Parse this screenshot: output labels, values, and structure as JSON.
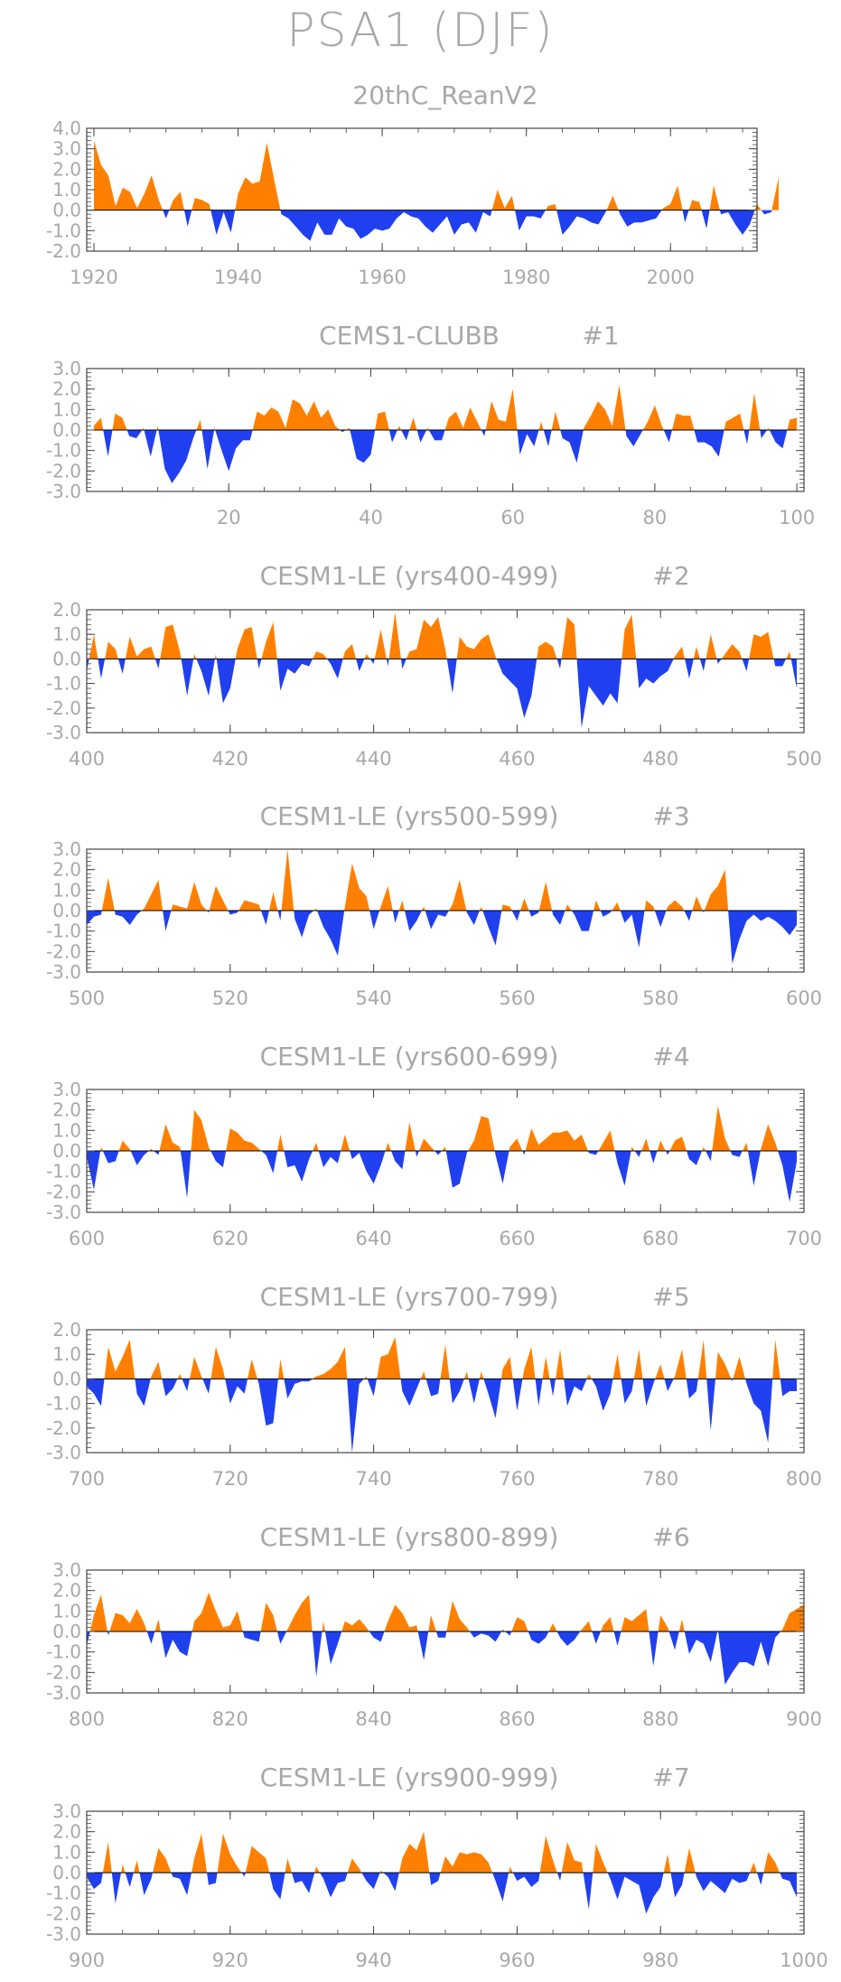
{
  "title": "PSA1 (DJF)",
  "colors": {
    "positive": "#ff8000",
    "negative": "#2040f0",
    "frame": "#444444",
    "text": "#a8a8a8"
  },
  "chart_data": [
    {
      "type": "area",
      "title": "20thC_ReanV2",
      "ylim": [
        -2,
        4
      ],
      "yticks": [
        "4.0",
        "3.0",
        "2.0",
        "1.0",
        "0.0",
        "-1.0",
        "-2.0"
      ],
      "xlim": [
        1919,
        2012
      ],
      "xticks": [
        "1920",
        "1940",
        "1960",
        "1980",
        "2000"
      ],
      "x_start": 1920,
      "values": [
        3.4,
        2.2,
        1.7,
        0.2,
        1.1,
        0.9,
        0.1,
        0.8,
        1.7,
        0.5,
        -0.4,
        0.5,
        0.9,
        -0.8,
        0.6,
        0.5,
        0.3,
        -1.2,
        -0.1,
        -1.1,
        0.8,
        1.6,
        1.3,
        1.4,
        3.3,
        1.5,
        -0.2,
        -0.4,
        -0.8,
        -1.2,
        -1.5,
        -0.6,
        -1.2,
        -1.2,
        -0.4,
        -0.8,
        -0.9,
        -1.4,
        -1.2,
        -0.9,
        -1.0,
        -0.9,
        -0.4,
        -0.1,
        -0.3,
        -0.4,
        -0.8,
        -1.1,
        -0.7,
        -0.3,
        -1.2,
        -0.7,
        -0.6,
        -1.1,
        -0.1,
        -0.3,
        1.0,
        0.1,
        0.7,
        -1.0,
        -0.3,
        -0.3,
        -0.4,
        0.2,
        0.3,
        -1.2,
        -0.8,
        -0.3,
        -0.4,
        -0.6,
        -0.7,
        -0.1,
        0.7,
        -0.2,
        -0.8,
        -0.6,
        -0.6,
        -0.5,
        -0.4,
        0.1,
        0.3,
        1.2,
        -0.6,
        0.5,
        0.4,
        -0.9,
        1.2,
        -0.2,
        -0.1,
        -0.7,
        -1.2,
        -0.7,
        0.3,
        -0.2,
        -0.1,
        1.6
      ]
    },
    {
      "type": "area",
      "title": "CEMS1-CLUBB",
      "tag": "#1",
      "ylim": [
        -3,
        3
      ],
      "yticks": [
        "3.0",
        "2.0",
        "1.0",
        "0.0",
        "-1.0",
        "-2.0",
        "-3.0"
      ],
      "xlim": [
        0,
        101
      ],
      "xticks": [
        "20",
        "40",
        "60",
        "80",
        "100"
      ],
      "x_start": 1,
      "values": [
        0.2,
        0.6,
        -1.3,
        0.8,
        0.6,
        -0.3,
        -0.4,
        0.1,
        -1.3,
        0.2,
        -1.9,
        -2.6,
        -2.1,
        -1.5,
        -0.4,
        0.5,
        -1.9,
        0.1,
        -1.0,
        -2.0,
        -0.9,
        -0.5,
        -0.5,
        0.9,
        0.7,
        1.1,
        0.9,
        0.1,
        1.5,
        1.3,
        0.7,
        1.4,
        0.6,
        1.0,
        0.2,
        -0.1,
        0.1,
        -1.4,
        -1.6,
        -1.2,
        0.8,
        0.9,
        -0.6,
        0.2,
        -0.5,
        0.6,
        -0.6,
        0.1,
        -0.5,
        -0.5,
        0.6,
        0.9,
        0.1,
        1.1,
        0.4,
        -0.3,
        1.4,
        0.5,
        0.4,
        2.0,
        -1.2,
        -0.2,
        -0.8,
        0.4,
        -0.8,
        0.9,
        -0.4,
        -0.6,
        -1.6,
        0.1,
        0.7,
        1.4,
        1.0,
        0.2,
        2.2,
        -0.3,
        -0.8,
        -0.2,
        0.4,
        1.2,
        0.2,
        -0.6,
        0.8,
        0.7,
        0.7,
        -0.6,
        -0.6,
        -0.8,
        -1.3,
        0.4,
        0.6,
        0.8,
        -0.7,
        1.8,
        -0.4,
        0.1,
        -0.6,
        -0.9,
        0.5,
        0.6
      ]
    },
    {
      "type": "area",
      "title": "CESM1-LE (yrs400-499)",
      "tag": "#2",
      "ylim": [
        -3,
        2
      ],
      "yticks": [
        "2.0",
        "1.0",
        "0.0",
        "-1.0",
        "-2.0",
        "-3.0"
      ],
      "xlim": [
        400,
        500
      ],
      "xticks": [
        "400",
        "420",
        "440",
        "460",
        "480",
        "500"
      ],
      "x_start": 400,
      "values": [
        -0.5,
        1.0,
        -0.8,
        0.7,
        0.4,
        -0.6,
        0.9,
        0.1,
        0.4,
        0.5,
        -0.4,
        1.3,
        1.4,
        0.3,
        -1.5,
        0.2,
        -0.5,
        -1.5,
        0.2,
        -1.8,
        -1.2,
        0.4,
        1.2,
        1.3,
        -0.4,
        0.7,
        1.5,
        -1.3,
        -0.4,
        -0.6,
        -0.2,
        -0.3,
        0.3,
        0.2,
        -0.2,
        -0.8,
        0.3,
        0.6,
        -0.5,
        0.2,
        -0.2,
        1.2,
        -0.3,
        1.9,
        -0.4,
        0.3,
        0.4,
        1.6,
        1.3,
        1.7,
        0.4,
        -1.4,
        0.9,
        0.5,
        0.4,
        0.8,
        1.0,
        0.1,
        -0.6,
        -0.9,
        -1.2,
        -2.4,
        -1.5,
        0.5,
        0.7,
        0.5,
        -0.4,
        1.7,
        1.4,
        -2.8,
        -1.1,
        -1.5,
        -1.9,
        -1.4,
        -1.8,
        1.2,
        1.8,
        -1.2,
        -0.8,
        -1.0,
        -0.7,
        -0.5,
        0.1,
        0.5,
        -0.8,
        0.5,
        -0.5,
        1.0,
        -0.2,
        0.2,
        0.6,
        0.3,
        -0.5,
        1.0,
        0.9,
        1.1,
        -0.3,
        -0.3,
        0.3,
        -1.2
      ]
    },
    {
      "type": "area",
      "title": "CESM1-LE (yrs500-599)",
      "tag": "#3",
      "ylim": [
        -3,
        3
      ],
      "yticks": [
        "3.0",
        "2.0",
        "1.0",
        "0.0",
        "-1.0",
        "-2.0",
        "-3.0"
      ],
      "xlim": [
        500,
        600
      ],
      "xticks": [
        "500",
        "520",
        "540",
        "560",
        "580",
        "600"
      ],
      "x_start": 500,
      "values": [
        -0.7,
        -0.3,
        -0.2,
        1.6,
        -0.2,
        -0.3,
        -0.7,
        -0.2,
        0.1,
        0.8,
        1.5,
        -1.0,
        0.3,
        0.2,
        0.1,
        1.4,
        0.3,
        -0.1,
        1.2,
        0.5,
        -0.2,
        -0.1,
        0.5,
        0.4,
        0.3,
        -0.7,
        0.9,
        -0.5,
        3.0,
        -0.4,
        -1.3,
        -0.2,
        0.1,
        -0.8,
        -1.4,
        -2.2,
        0.2,
        2.3,
        1.1,
        0.7,
        -0.9,
        0.2,
        1.2,
        -0.6,
        0.5,
        -1.0,
        -0.5,
        0.2,
        -0.9,
        -0.2,
        -0.3,
        0.3,
        1.5,
        -0.1,
        -0.7,
        0.2,
        -0.8,
        -1.7,
        0.3,
        0.2,
        -0.5,
        0.6,
        -0.3,
        -0.1,
        1.4,
        -0.2,
        -0.7,
        0.3,
        -0.2,
        -1.0,
        -1.0,
        0.5,
        -0.3,
        -0.1,
        0.4,
        -0.6,
        -0.2,
        -1.8,
        0.5,
        0.2,
        -0.8,
        0.2,
        0.5,
        0.2,
        -0.5,
        0.7,
        -0.1,
        0.8,
        1.2,
        2.0,
        -2.6,
        -1.4,
        -0.5,
        -0.2,
        -0.5,
        -0.3,
        -0.5,
        -0.8,
        -1.2,
        -0.7
      ]
    },
    {
      "type": "area",
      "title": "CESM1-LE (yrs600-699)",
      "tag": "#4",
      "ylim": [
        -3,
        3
      ],
      "yticks": [
        "3.0",
        "2.0",
        "1.0",
        "0.0",
        "-1.0",
        "-2.0",
        "-3.0"
      ],
      "xlim": [
        600,
        700
      ],
      "xticks": [
        "600",
        "620",
        "640",
        "660",
        "680",
        "700"
      ],
      "x_start": 600,
      "values": [
        -0.3,
        -1.9,
        0.2,
        -0.6,
        -0.5,
        0.5,
        0.1,
        -0.7,
        -0.2,
        0.1,
        -0.2,
        1.3,
        0.4,
        0.2,
        -2.3,
        2.0,
        1.5,
        0.2,
        -0.5,
        -0.8,
        1.1,
        0.9,
        0.5,
        0.4,
        0.1,
        -0.2,
        -1.1,
        0.8,
        -0.8,
        -0.7,
        -1.5,
        -0.4,
        0.4,
        -0.8,
        -0.3,
        -0.6,
        0.8,
        -0.4,
        -0.1,
        -1.0,
        -1.6,
        -0.7,
        0.4,
        -0.5,
        -0.9,
        1.4,
        -0.3,
        0.6,
        0.2,
        -0.2,
        0.2,
        -1.8,
        -1.6,
        -0.1,
        0.5,
        1.7,
        1.6,
        -0.2,
        -1.6,
        0.2,
        0.6,
        -0.2,
        1.1,
        0.3,
        0.6,
        0.9,
        0.9,
        1.0,
        0.5,
        0.8,
        -0.1,
        -0.2,
        0.4,
        1.0,
        -0.6,
        -1.7,
        0.2,
        -0.3,
        0.6,
        -0.6,
        0.5,
        -0.2,
        0.5,
        0.7,
        -0.4,
        -0.7,
        0.2,
        -0.5,
        2.2,
        0.6,
        -0.2,
        -0.3,
        0.4,
        -1.7,
        0.1,
        1.3,
        0.4,
        -0.7,
        -2.5,
        -0.5
      ]
    },
    {
      "type": "area",
      "title": "CESM1-LE (yrs700-799)",
      "tag": "#5",
      "ylim": [
        -3,
        2
      ],
      "yticks": [
        "2.0",
        "1.0",
        "0.0",
        "-1.0",
        "-2.0",
        "-3.0"
      ],
      "xlim": [
        700,
        800
      ],
      "xticks": [
        "700",
        "720",
        "740",
        "760",
        "780",
        "800"
      ],
      "x_start": 700,
      "values": [
        -0.3,
        -0.6,
        -1.1,
        1.3,
        0.3,
        0.9,
        1.6,
        -0.6,
        -1.1,
        0.1,
        0.7,
        -0.7,
        -0.4,
        0.2,
        -0.5,
        0.9,
        0.1,
        -0.6,
        1.3,
        0.4,
        -1.0,
        -0.3,
        -0.6,
        0.8,
        -0.2,
        -1.9,
        -1.8,
        0.8,
        -0.8,
        -0.2,
        -0.1,
        -0.1,
        0.1,
        0.2,
        0.4,
        0.7,
        1.3,
        -3.0,
        -0.2,
        0.1,
        -0.7,
        0.9,
        1.0,
        1.7,
        -0.5,
        -1.1,
        -0.4,
        0.3,
        -0.7,
        -0.6,
        1.4,
        -1.0,
        -0.5,
        0.3,
        -1.0,
        0.3,
        -0.6,
        -1.6,
        0.4,
        0.9,
        -1.3,
        0.4,
        1.3,
        -1.1,
        0.9,
        -0.7,
        1.2,
        -1.1,
        -0.3,
        -0.5,
        0.2,
        -0.3,
        -1.3,
        -0.6,
        1.0,
        -1.0,
        -0.5,
        1.2,
        -1.1,
        -0.2,
        0.6,
        -0.5,
        0.1,
        1.2,
        -0.8,
        -0.5,
        1.6,
        -2.1,
        1.1,
        0.6,
        -0.1,
        0.9,
        -0.2,
        -1.0,
        -1.3,
        -2.6,
        1.6,
        -0.7,
        -0.5,
        -0.5
      ]
    },
    {
      "type": "area",
      "title": "CESM1-LE (yrs800-899)",
      "tag": "#6",
      "ylim": [
        -3,
        3
      ],
      "yticks": [
        "3.0",
        "2.0",
        "1.0",
        "0.0",
        "-1.0",
        "-2.0",
        "-3.0"
      ],
      "xlim": [
        800,
        900
      ],
      "xticks": [
        "800",
        "820",
        "840",
        "860",
        "880",
        "900"
      ],
      "x_start": 800,
      "values": [
        -0.7,
        0.8,
        1.8,
        -0.2,
        0.9,
        0.8,
        0.4,
        1.1,
        0.4,
        -0.6,
        0.6,
        -1.3,
        -0.4,
        -1.0,
        -1.2,
        0.5,
        0.9,
        1.9,
        1.0,
        0.2,
        0.3,
        1.0,
        -0.3,
        -0.4,
        -0.5,
        1.4,
        0.8,
        -0.6,
        0.1,
        0.8,
        1.4,
        1.8,
        -2.2,
        0.5,
        -1.6,
        -0.6,
        0.5,
        0.3,
        0.6,
        0.2,
        -0.3,
        -0.5,
        0.5,
        1.3,
        0.9,
        0.2,
        0.3,
        -1.4,
        0.8,
        -0.3,
        -0.3,
        1.5,
        0.6,
        0.2,
        -0.3,
        -0.1,
        -0.2,
        -0.5,
        0.1,
        -0.2,
        0.7,
        0.5,
        -0.4,
        -0.6,
        -0.3,
        0.4,
        -0.3,
        -0.7,
        -0.4,
        0.1,
        0.5,
        -0.6,
        0.3,
        0.7,
        -0.7,
        0.7,
        0.5,
        0.8,
        1.1,
        -1.7,
        0.8,
        0.2,
        -0.9,
        0.6,
        -1.1,
        -0.4,
        -0.6,
        -1.5,
        0.1,
        -2.6,
        -2.0,
        -1.5,
        -1.5,
        -1.7,
        -0.5,
        -1.7,
        -0.3,
        0.1,
        0.9,
        1.1,
        1.3
      ]
    },
    {
      "type": "area",
      "title": "CESM1-LE (yrs900-999)",
      "tag": "#7",
      "ylim": [
        -3,
        3
      ],
      "yticks": [
        "3.0",
        "2.0",
        "1.0",
        "0.0",
        "-1.0",
        "-2.0",
        "-3.0"
      ],
      "xlim": [
        900,
        1000
      ],
      "xticks": [
        "900",
        "920",
        "940",
        "960",
        "980",
        "1000"
      ],
      "x_start": 900,
      "values": [
        -0.2,
        -0.8,
        -0.5,
        1.5,
        -1.5,
        0.4,
        -0.7,
        0.6,
        -1.1,
        -0.3,
        1.2,
        0.7,
        -0.2,
        -0.3,
        -1.1,
        0.7,
        1.9,
        -0.6,
        -0.5,
        1.9,
        0.9,
        0.3,
        -0.2,
        1.3,
        1.0,
        0.7,
        -0.8,
        -1.3,
        0.7,
        -0.5,
        -0.4,
        -1.0,
        0.3,
        -0.3,
        -1.2,
        -0.5,
        -0.4,
        0.7,
        0.2,
        -0.4,
        -0.8,
        0.1,
        -0.2,
        -0.9,
        0.7,
        1.4,
        1.1,
        2.0,
        -0.6,
        -0.4,
        0.8,
        0.3,
        1.0,
        0.9,
        1.0,
        0.9,
        0.5,
        -0.4,
        -1.4,
        0.3,
        -0.4,
        -0.2,
        -0.7,
        -0.4,
        1.8,
        0.6,
        -0.4,
        1.5,
        0.6,
        0.5,
        -1.8,
        1.4,
        0.5,
        -0.3,
        -1.3,
        -0.2,
        -0.4,
        -0.6,
        -2.0,
        -1.2,
        -0.7,
        0.9,
        -1.2,
        -0.6,
        1.2,
        -0.2,
        -0.9,
        -0.4,
        -0.7,
        -1.0,
        -0.3,
        -0.5,
        -0.4,
        0.5,
        -0.6,
        1.0,
        0.5,
        -0.3,
        -0.4,
        -1.2
      ]
    }
  ]
}
